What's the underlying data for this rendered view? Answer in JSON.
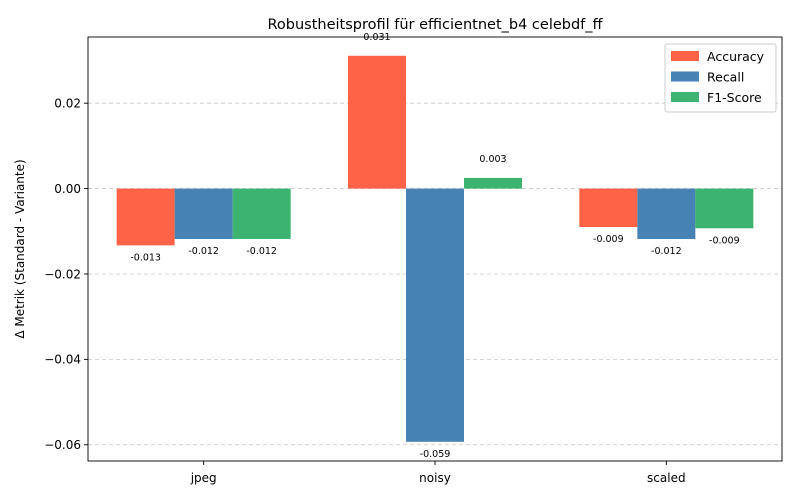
{
  "chart_data": {
    "type": "bar",
    "title": "Robustheitsprofil für efficientnet_b4 celebdf_ff",
    "xlabel": "",
    "ylabel": "Δ Metrik (Standard - Variante)",
    "categories": [
      "jpeg",
      "noisy",
      "scaled"
    ],
    "series": [
      {
        "name": "Accuracy",
        "color": "#ff6347",
        "values": [
          -0.0133,
          0.0311,
          -0.009
        ],
        "labels": [
          "-0.013",
          "0.031",
          "-0.009"
        ]
      },
      {
        "name": "Recall",
        "color": "#4682b4",
        "values": [
          -0.0118,
          -0.0593,
          -0.0118
        ],
        "labels": [
          "-0.012",
          "-0.059",
          "-0.012"
        ]
      },
      {
        "name": "F1-Score",
        "color": "#3cb371",
        "values": [
          -0.0118,
          0.0025,
          -0.0093
        ],
        "labels": [
          "-0.012",
          "0.003",
          "-0.009"
        ]
      }
    ],
    "ylim": [
      -0.0638,
      0.0355
    ],
    "yticks": [
      -0.06,
      -0.04,
      -0.02,
      0.0,
      0.02
    ],
    "ytick_labels": [
      "−0.06",
      "−0.04",
      "−0.02",
      "0.00",
      "0.02"
    ],
    "grid": "horizontal dashed",
    "legend_position": "top-right"
  }
}
